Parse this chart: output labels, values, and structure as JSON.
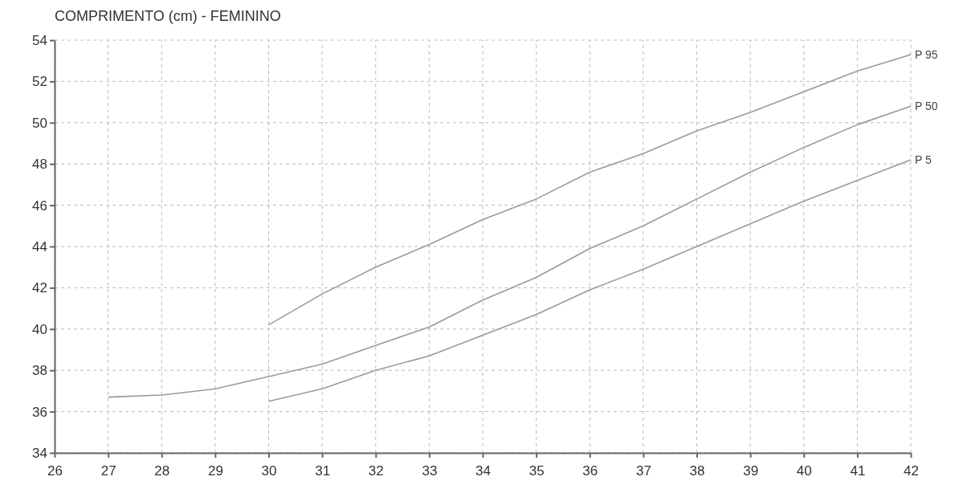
{
  "chart_data": {
    "type": "line",
    "title": "COMPRIMENTO (cm) - FEMININO",
    "x": [
      27,
      28,
      29,
      30,
      31,
      32,
      33,
      34,
      35,
      36,
      37,
      38,
      39,
      40,
      41,
      42
    ],
    "series": [
      {
        "name": "P 95",
        "color": "#9a9a9a",
        "x": [
          30,
          31,
          32,
          33,
          34,
          35,
          36,
          37,
          38,
          39,
          40,
          41,
          42
        ],
        "values": [
          40.2,
          41.7,
          43.0,
          44.1,
          45.3,
          46.3,
          47.6,
          48.5,
          49.6,
          50.5,
          51.5,
          52.5,
          53.3
        ]
      },
      {
        "name": "P 50",
        "color": "#9a9a9a",
        "values": [
          36.7,
          36.8,
          37.1,
          37.7,
          38.3,
          39.2,
          40.1,
          41.4,
          42.5,
          43.9,
          45.0,
          46.3,
          47.6,
          48.8,
          49.9,
          50.8
        ]
      },
      {
        "name": "P 5",
        "color": "#9a9a9a",
        "x": [
          30,
          31,
          32,
          33,
          34,
          35,
          36,
          37,
          38,
          39,
          40,
          41,
          42
        ],
        "values": [
          36.5,
          37.1,
          38.0,
          38.7,
          39.7,
          40.7,
          41.9,
          42.9,
          44.0,
          45.1,
          46.2,
          47.2,
          48.2
        ]
      }
    ],
    "xlim": [
      26,
      42
    ],
    "xticks": [
      26,
      27,
      28,
      29,
      30,
      31,
      32,
      33,
      34,
      35,
      36,
      37,
      38,
      39,
      40,
      41,
      42
    ],
    "ylim": [
      34,
      54
    ],
    "yticks": [
      34,
      36,
      38,
      40,
      42,
      44,
      46,
      48,
      50,
      52,
      54
    ],
    "grid": true,
    "legend": false,
    "marker": "none",
    "line_style": "solid"
  }
}
